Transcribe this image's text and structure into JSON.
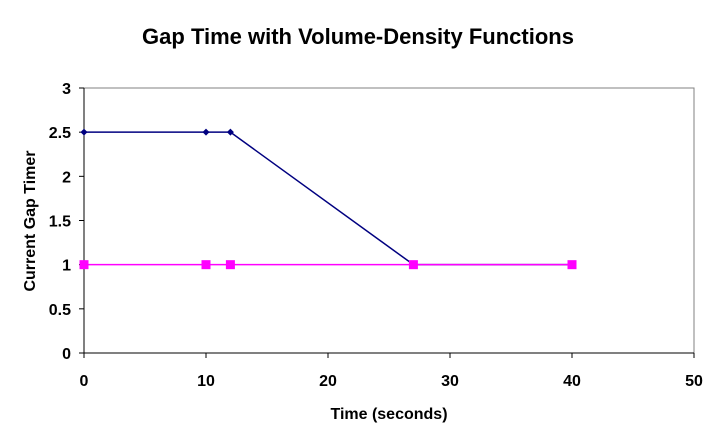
{
  "chart_data": {
    "type": "line",
    "title": "Gap Time with Volume-Density Functions",
    "xlabel": "Time (seconds)",
    "ylabel": "Current Gap Timer",
    "xlim": [
      0,
      50
    ],
    "ylim": [
      0,
      3
    ],
    "x_ticks": [
      "0",
      "10",
      "20",
      "30",
      "40",
      "50"
    ],
    "y_ticks": [
      "0",
      "0.5",
      "1",
      "1.5",
      "2",
      "2.5",
      "3"
    ],
    "grid": false,
    "legend": "none",
    "series": [
      {
        "color": "#000080",
        "marker": "diamond",
        "points": [
          [
            0,
            2.5
          ],
          [
            10,
            2.5
          ],
          [
            12,
            2.5
          ],
          [
            27,
            1.0
          ],
          [
            40,
            1.0
          ]
        ]
      },
      {
        "color": "#FF00FF",
        "marker": "square",
        "points": [
          [
            0,
            1.0
          ],
          [
            10,
            1.0
          ],
          [
            12,
            1.0
          ],
          [
            27,
            1.0
          ],
          [
            40,
            1.0
          ]
        ]
      }
    ]
  }
}
